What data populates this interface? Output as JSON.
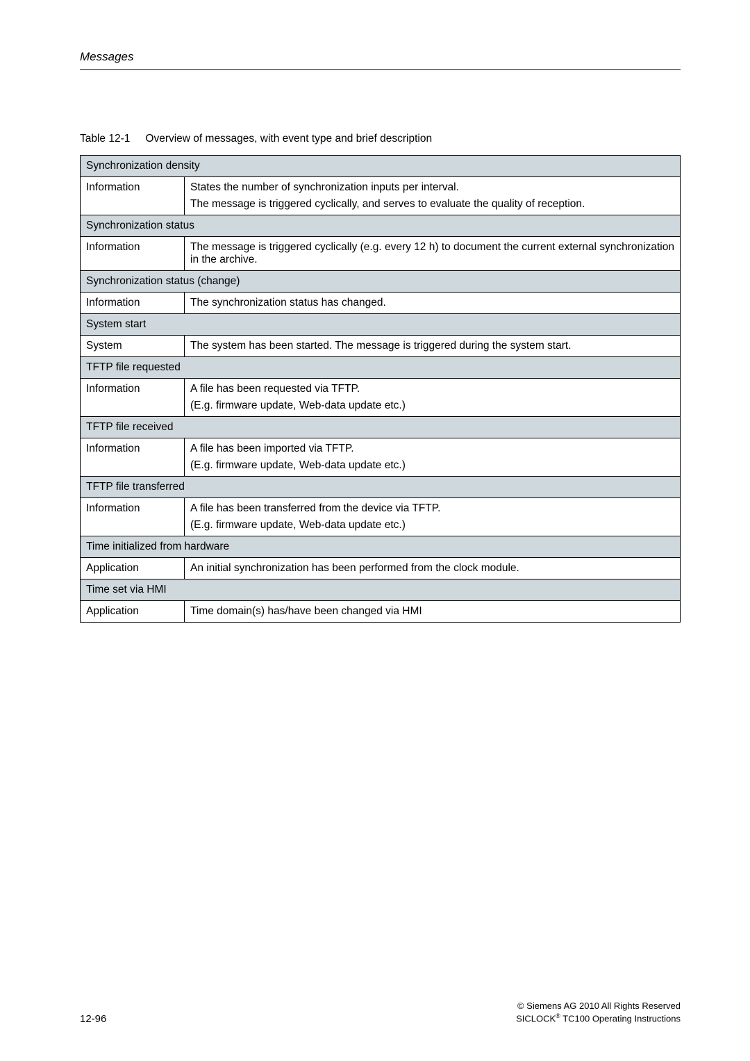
{
  "running_head": "Messages",
  "caption": {
    "number": "Table 12-1",
    "text": "Overview of messages, with event type and brief description"
  },
  "sections": [
    {
      "title": "Synchronization density",
      "rows": [
        {
          "type": "Information",
          "line1": "States the number of synchronization inputs per interval.",
          "line2": "The message is triggered cyclically, and serves to evaluate the quality of reception."
        }
      ]
    },
    {
      "title": "Synchronization status",
      "rows": [
        {
          "type": "Information",
          "line1": "The message is triggered cyclically (e.g. every 12 h) to document the current external synchronization in the archive."
        }
      ]
    },
    {
      "title": "Synchronization status (change)",
      "rows": [
        {
          "type": "Information",
          "line1": "The synchronization status has changed."
        }
      ]
    },
    {
      "title": "System start",
      "rows": [
        {
          "type": "System",
          "line1": "The system has been started. The message is triggered during the system start."
        }
      ]
    },
    {
      "title": "TFTP file requested",
      "rows": [
        {
          "type": "Information",
          "line1": "A file has been requested via TFTP.",
          "line2": "(E.g. firmware update, Web-data update etc.)"
        }
      ]
    },
    {
      "title": "TFTP file received",
      "rows": [
        {
          "type": "Information",
          "line1": "A file has been imported via TFTP.",
          "line2": "(E.g. firmware update, Web-data update etc.)"
        }
      ]
    },
    {
      "title": "TFTP file transferred",
      "rows": [
        {
          "type": "Information",
          "line1": "A file has been transferred from the device via TFTP.",
          "line2": "(E.g. firmware update, Web-data update etc.)"
        }
      ]
    },
    {
      "title": "Time initialized from hardware",
      "rows": [
        {
          "type": "Application",
          "line1": "An initial synchronization has been performed from the clock module."
        }
      ]
    },
    {
      "title": "Time set via HMI",
      "rows": [
        {
          "type": "Application",
          "line1": "Time domain(s) has/have been changed via HMI"
        }
      ]
    }
  ],
  "footer": {
    "page": "12-96",
    "copyright": "© Siemens AG 2010 All Rights Reserved",
    "product_pre": "SICLOCK",
    "product_post": " TC100  Operating Instructions"
  },
  "colors": {
    "section_bg": "#cfd8dc",
    "border": "#000000",
    "text": "#000000",
    "page_bg": "#ffffff"
  }
}
